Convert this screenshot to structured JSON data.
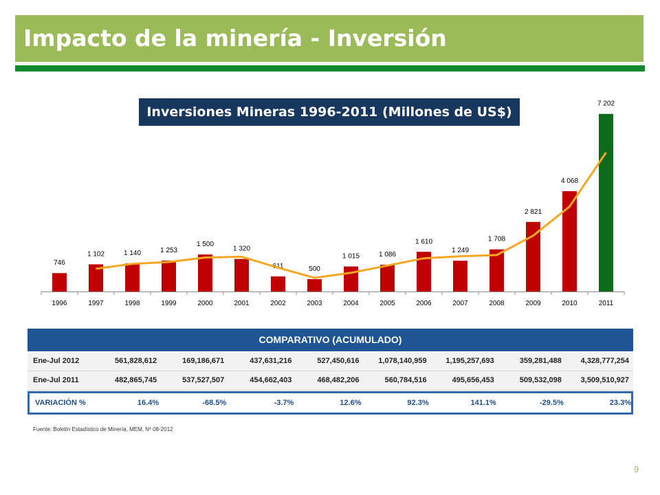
{
  "slide": {
    "title": "Impacto de la minería - Inversión",
    "page_number": "9",
    "source": "Fuente: Boletín Estadístico de Minería, MEM, Nº 08-2012"
  },
  "colors": {
    "title_bar": "#9bbb59",
    "title_rule": "#108a2e",
    "bar": "#c00000",
    "bar_highlight": "#0e6b1c",
    "trend_line": "#f5a623",
    "table_header": "#1f5592"
  },
  "chart_data": {
    "type": "bar",
    "title": "Inversiones Mineras 1996-2011 (Millones de US$)",
    "categories": [
      "1996",
      "1997",
      "1998",
      "1999",
      "2000",
      "2001",
      "2002",
      "2003",
      "2004",
      "2005",
      "2006",
      "2007",
      "2008",
      "2009",
      "2010",
      "2011"
    ],
    "values": [
      746,
      1102,
      1140,
      1253,
      1500,
      1320,
      611,
      500,
      1015,
      1086,
      1610,
      1249,
      1708,
      2821,
      4068,
      7202
    ],
    "data_labels": [
      "746",
      "1 102",
      "1 140",
      "1 253",
      "1 500",
      "1 320",
      "611",
      "500",
      "1 015",
      "1 086",
      "1 610",
      "1 249",
      "1 708",
      "2 821",
      "4 068",
      "7 202"
    ],
    "highlight_category": "2011",
    "trend_line": {
      "categories": [
        "1997",
        "1998",
        "1999",
        "2000",
        "2001",
        "2002",
        "2003",
        "2004",
        "2005",
        "2006",
        "2007",
        "2008",
        "2009",
        "2010",
        "2011"
      ],
      "values": [
        924,
        1121,
        1197,
        1377,
        1410,
        966,
        556,
        758,
        1051,
        1348,
        1430,
        1479,
        2265,
        3445,
        5635
      ]
    },
    "ylim": [
      0,
      7500
    ],
    "grid": false,
    "legend": "none"
  },
  "table": {
    "header": "COMPARATIVO (ACUMULADO)",
    "rows": [
      {
        "label": "Ene-Jul 2012",
        "values": [
          "561,828,612",
          "169,186,671",
          "437,631,216",
          "527,450,616",
          "1,078,140,959",
          "1,195,257,693",
          "359,281,488",
          "4,328,777,254"
        ]
      },
      {
        "label": "Ene-Jul 2011",
        "values": [
          "482,865,745",
          "537,527,507",
          "454,662,403",
          "468,482,206",
          "560,784,516",
          "495,656,453",
          "509,532,098",
          "3,509,510,927"
        ]
      },
      {
        "label": "VARIACIÓN %",
        "values": [
          "16.4%",
          "-68.5%",
          "-3.7%",
          "12.6%",
          "92.3%",
          "141.1%",
          "-29.5%",
          "23.3%"
        ]
      }
    ]
  }
}
